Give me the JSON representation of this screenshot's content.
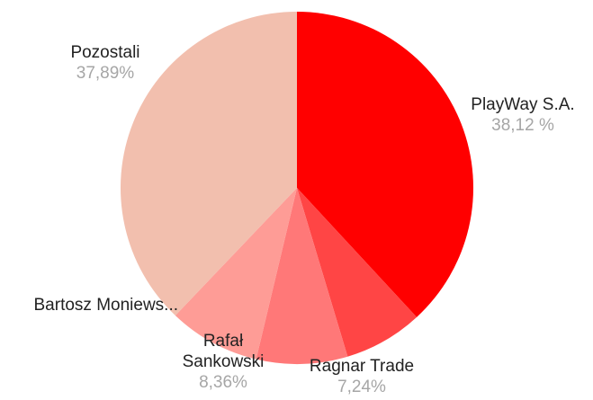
{
  "chart_data": {
    "type": "pie",
    "title": "",
    "legend": "none",
    "slices": [
      {
        "label": "PlayWay S.A.",
        "label_lines": [
          "PlayWay S.A."
        ],
        "value": 38.12,
        "value_label": "38,12 %",
        "color": "#ff0000"
      },
      {
        "label": "Ragnar Trade",
        "label_lines": [
          "Ragnar Trade"
        ],
        "value": 7.24,
        "value_label": "7,24%",
        "color": "#ff4545"
      },
      {
        "label": "Rafał Sankowski",
        "label_lines": [
          "Rafał",
          "Sankowski"
        ],
        "value": 8.36,
        "value_label": "8,36%",
        "color": "#ff7878"
      },
      {
        "label": "Bartosz Moniews...",
        "label_lines": [
          "Bartosz Moniews..."
        ],
        "value": 8.39,
        "value_label": "",
        "color": "#fe9c96"
      },
      {
        "label": "Pozostali",
        "label_lines": [
          "Pozostali"
        ],
        "value": 37.89,
        "value_label": "37,89%",
        "color": "#f2bfae"
      }
    ]
  }
}
